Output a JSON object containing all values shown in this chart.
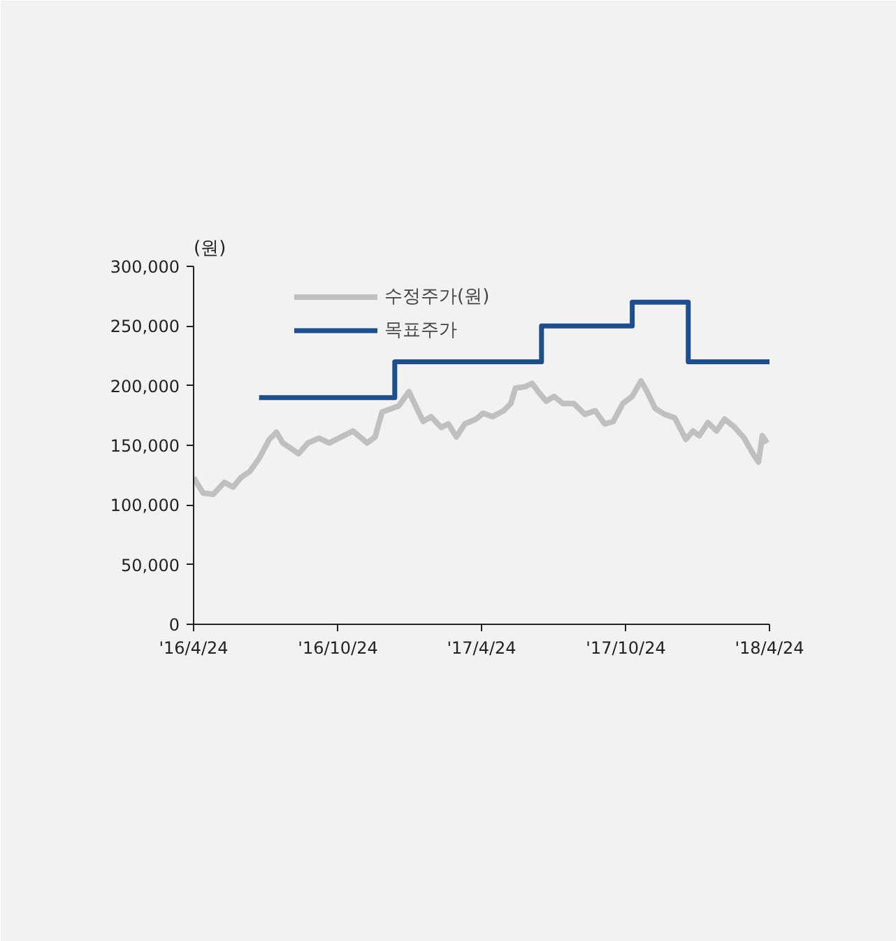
{
  "chart_data": {
    "type": "line",
    "ylabel": "(원)",
    "xlim": [
      "2016-04-24",
      "2018-04-24"
    ],
    "xticks": [
      {
        "value": "2016-04-24",
        "label": "'16/4/24"
      },
      {
        "value": "2016-10-24",
        "label": "'16/10/24"
      },
      {
        "value": "2017-04-24",
        "label": "'17/4/24"
      },
      {
        "value": "2017-10-24",
        "label": "'17/10/24"
      },
      {
        "value": "2018-04-24",
        "label": "'18/4/24"
      }
    ],
    "ylim": [
      0,
      300000
    ],
    "yticks": [
      {
        "value": 0,
        "label": "0"
      },
      {
        "value": 50000,
        "label": "50,000"
      },
      {
        "value": 100000,
        "label": "100,000"
      },
      {
        "value": 150000,
        "label": "150,000"
      },
      {
        "value": 200000,
        "label": "200,000"
      },
      {
        "value": 250000,
        "label": "250,000"
      },
      {
        "value": 300000,
        "label": "300,000"
      }
    ],
    "legend": "top",
    "grid": false,
    "series": [
      {
        "name": "수정주가(원)",
        "type": "line",
        "color": "#c0c0c0",
        "x": [
          "2016-04-24",
          "2016-05-06",
          "2016-05-19",
          "2016-06-02",
          "2016-06-13",
          "2016-06-23",
          "2016-07-04",
          "2016-07-16",
          "2016-07-29",
          "2016-08-07",
          "2016-08-15",
          "2016-08-24",
          "2016-09-04",
          "2016-09-16",
          "2016-09-30",
          "2016-10-13",
          "2016-10-31",
          "2016-11-12",
          "2016-11-30",
          "2016-12-10",
          "2016-12-19",
          "2017-01-01",
          "2017-01-09",
          "2017-01-22",
          "2017-01-29",
          "2017-02-09",
          "2017-02-19",
          "2017-03-04",
          "2017-03-13",
          "2017-03-23",
          "2017-04-03",
          "2017-04-17",
          "2017-04-26",
          "2017-05-08",
          "2017-05-22",
          "2017-05-31",
          "2017-06-06",
          "2017-06-18",
          "2017-06-27",
          "2017-07-06",
          "2017-07-15",
          "2017-07-25",
          "2017-08-05",
          "2017-08-19",
          "2017-09-02",
          "2017-09-15",
          "2017-09-27",
          "2017-10-08",
          "2017-10-20",
          "2017-11-01",
          "2017-11-12",
          "2017-11-19",
          "2017-11-30",
          "2017-12-12",
          "2017-12-25",
          "2018-01-08",
          "2018-01-17",
          "2018-01-25",
          "2018-02-05",
          "2018-02-16",
          "2018-02-26",
          "2018-03-11",
          "2018-03-23",
          "2018-04-03",
          "2018-04-10",
          "2018-04-15",
          "2018-04-21"
        ],
        "values": [
          123000,
          110000,
          109000,
          119000,
          115000,
          123000,
          128000,
          139000,
          155000,
          161000,
          152000,
          148000,
          143000,
          152000,
          156000,
          152000,
          158000,
          162000,
          152000,
          157000,
          178000,
          181000,
          183000,
          195000,
          185000,
          170000,
          174000,
          165000,
          168000,
          157000,
          168000,
          172000,
          177000,
          174000,
          179000,
          185000,
          198000,
          199000,
          202000,
          194000,
          187000,
          191000,
          185000,
          185000,
          176000,
          179000,
          168000,
          170000,
          185000,
          191000,
          204000,
          196000,
          181000,
          176000,
          173000,
          155000,
          162000,
          158000,
          169000,
          162000,
          172000,
          165000,
          156000,
          143000,
          136000,
          158000,
          152000
        ]
      },
      {
        "name": "목표주가",
        "type": "step",
        "color": "#1f4e8c",
        "x": [
          "2016-07-16",
          "2017-01-04",
          "2017-07-09",
          "2017-11-01",
          "2018-01-11",
          "2018-04-24"
        ],
        "values": [
          190000,
          220000,
          250000,
          270000,
          220000,
          220000
        ]
      }
    ]
  }
}
